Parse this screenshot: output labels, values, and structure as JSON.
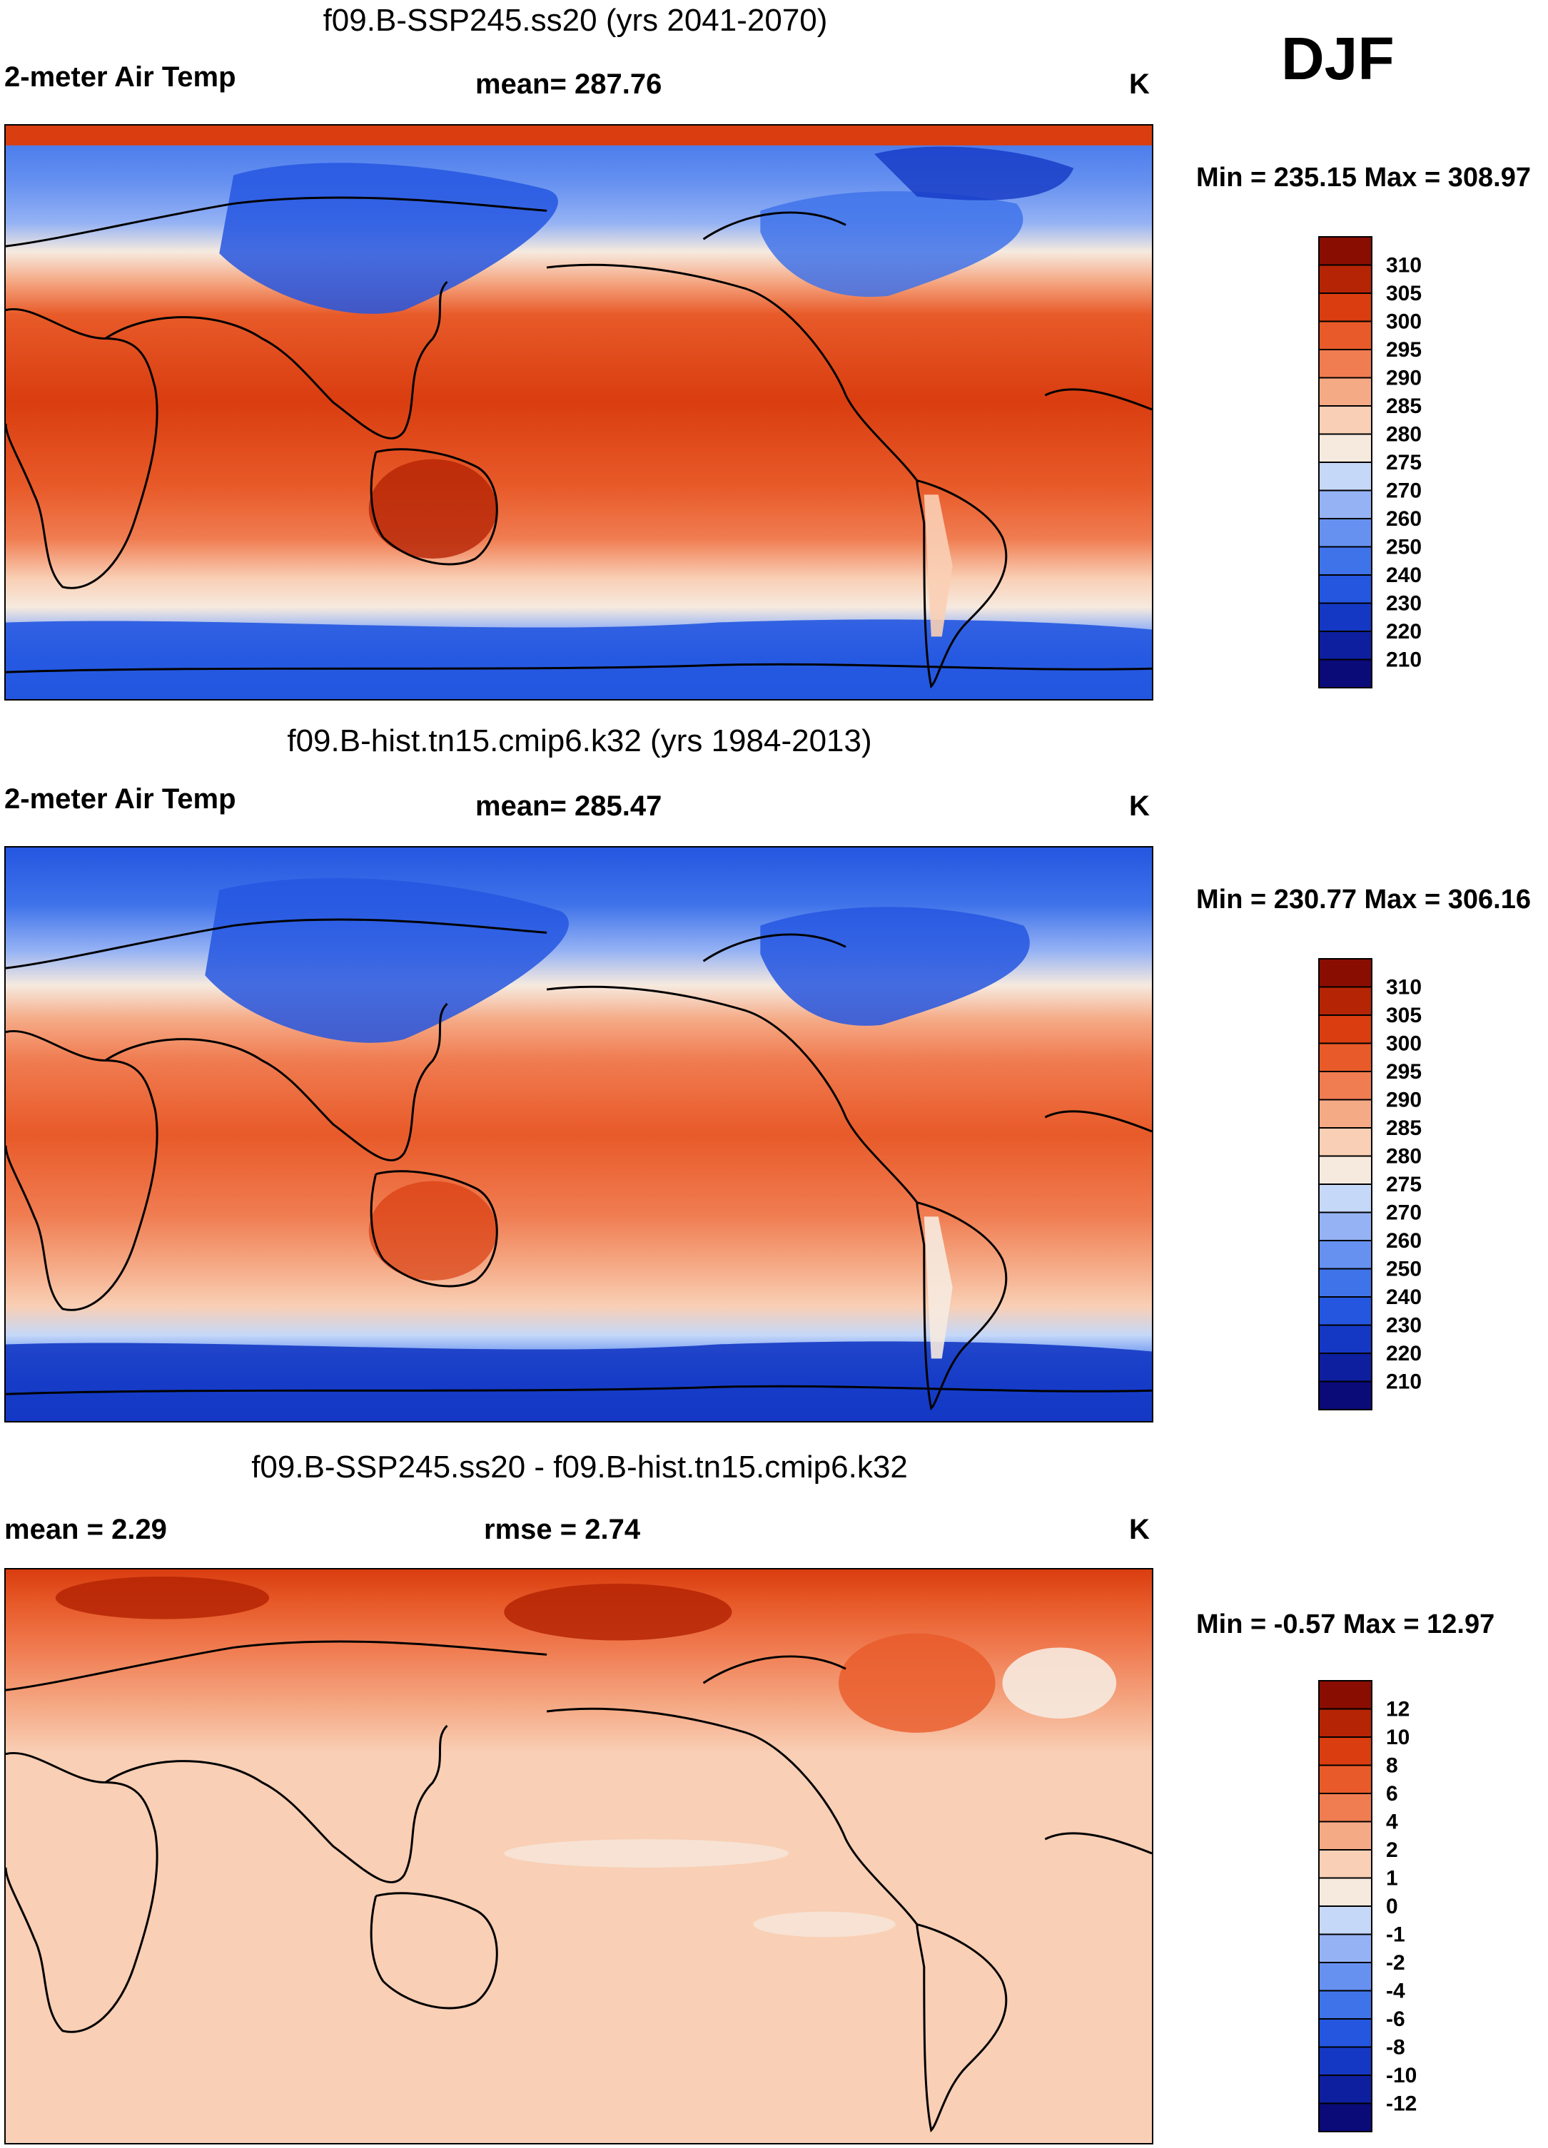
{
  "season": "DJF",
  "panels": [
    {
      "id": "future",
      "title": "f09.B-SSP245.ss20 (yrs 2041-2070)",
      "left_label": "2-meter Air Temp",
      "center_label": "mean= 287.76",
      "units": "K",
      "minmax": "Min = 235.15 Max = 308.97",
      "colorbar_labels": [
        "310",
        "305",
        "300",
        "295",
        "290",
        "285",
        "280",
        "275",
        "270",
        "260",
        "250",
        "240",
        "230",
        "220",
        "210"
      ]
    },
    {
      "id": "historical",
      "title": "f09.B-hist.tn15.cmip6.k32 (yrs 1984-2013)",
      "left_label": "2-meter Air Temp",
      "center_label": "mean= 285.47",
      "units": "K",
      "minmax": "Min = 230.77 Max = 306.16",
      "colorbar_labels": [
        "310",
        "305",
        "300",
        "295",
        "290",
        "285",
        "280",
        "275",
        "270",
        "260",
        "250",
        "240",
        "230",
        "220",
        "210"
      ]
    },
    {
      "id": "difference",
      "title": "f09.B-SSP245.ss20 - f09.B-hist.tn15.cmip6.k32",
      "left_label": "mean =   2.29",
      "center_label": "rmse =   2.74",
      "units": "K",
      "minmax": "Min =  -0.57 Max =  12.97",
      "colorbar_labels": [
        "12",
        "10",
        "8",
        "6",
        "4",
        "2",
        "1",
        "0",
        "-1",
        "-2",
        "-4",
        "-6",
        "-8",
        "-10",
        "-12"
      ]
    }
  ],
  "chart_data": [
    {
      "type": "heatmap",
      "title": "f09.B-SSP245.ss20 (yrs 2041-2070)",
      "variable": "2-meter Air Temp",
      "units": "K",
      "mean": 287.76,
      "min": 235.15,
      "max": 308.97,
      "contour_levels": [
        210,
        220,
        230,
        240,
        250,
        260,
        270,
        275,
        280,
        285,
        290,
        295,
        300,
        305,
        310
      ],
      "palette": [
        "#0a0a78",
        "#0d1f9e",
        "#1438c4",
        "#2456e0",
        "#3f73ea",
        "#6691f0",
        "#95b2f4",
        "#c5d8f8",
        "#f6eadf",
        "#f9cfb5",
        "#f5aa86",
        "#f07c51",
        "#e85a29",
        "#d93d10",
        "#b52405",
        "#8a0d02"
      ],
      "map_projection": "cylindrical equidistant, Pacific-centered"
    },
    {
      "type": "heatmap",
      "title": "f09.B-hist.tn15.cmip6.k32 (yrs 1984-2013)",
      "variable": "2-meter Air Temp",
      "units": "K",
      "mean": 285.47,
      "min": 230.77,
      "max": 306.16,
      "contour_levels": [
        210,
        220,
        230,
        240,
        250,
        260,
        270,
        275,
        280,
        285,
        290,
        295,
        300,
        305,
        310
      ],
      "palette": [
        "#0a0a78",
        "#0d1f9e",
        "#1438c4",
        "#2456e0",
        "#3f73ea",
        "#6691f0",
        "#95b2f4",
        "#c5d8f8",
        "#f6eadf",
        "#f9cfb5",
        "#f5aa86",
        "#f07c51",
        "#e85a29",
        "#d93d10",
        "#b52405",
        "#8a0d02"
      ],
      "map_projection": "cylindrical equidistant, Pacific-centered"
    },
    {
      "type": "heatmap",
      "title": "f09.B-SSP245.ss20 - f09.B-hist.tn15.cmip6.k32",
      "variable": "2-meter Air Temp difference",
      "units": "K",
      "mean": 2.29,
      "rmse": 2.74,
      "min": -0.57,
      "max": 12.97,
      "contour_levels": [
        -12,
        -10,
        -8,
        -6,
        -4,
        -2,
        -1,
        0,
        1,
        2,
        4,
        6,
        8,
        10,
        12
      ],
      "palette": [
        "#0a0a78",
        "#0d1f9e",
        "#1438c4",
        "#2456e0",
        "#3f73ea",
        "#6691f0",
        "#95b2f4",
        "#c5d8f8",
        "#f6eadf",
        "#f9cfb5",
        "#f5aa86",
        "#f07c51",
        "#e85a29",
        "#d93d10",
        "#b52405",
        "#8a0d02"
      ],
      "map_projection": "cylindrical equidistant, Pacific-centered"
    }
  ]
}
